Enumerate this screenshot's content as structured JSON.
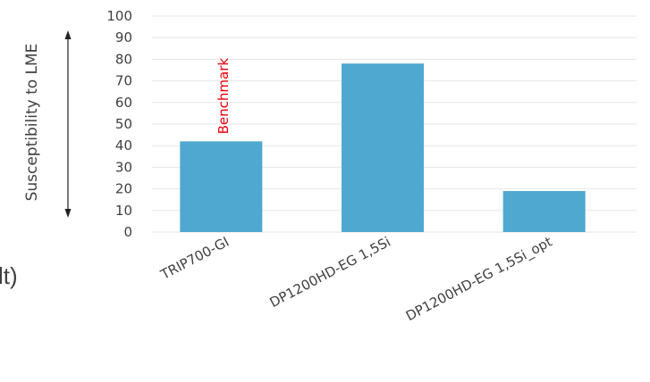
{
  "chart_data": {
    "type": "bar",
    "categories": [
      "TRIP700-GI",
      "DP1200HD-EG 1,5Si",
      "DP1200HD-EG 1,5Si_opt"
    ],
    "values": [
      42,
      78,
      19
    ],
    "ylabel": "Susceptibility to LME",
    "ylim": [
      0,
      100
    ],
    "yticks": [
      0,
      10,
      20,
      30,
      40,
      50,
      60,
      70,
      80,
      90,
      100
    ],
    "grid": true,
    "bar_color": "#4fa8cf",
    "annotations": [
      {
        "text": "Benchmark",
        "category": "TRIP700-GI",
        "color": "#e8000b"
      }
    ]
  },
  "edge_fragment": {
    "text": "lt)"
  }
}
